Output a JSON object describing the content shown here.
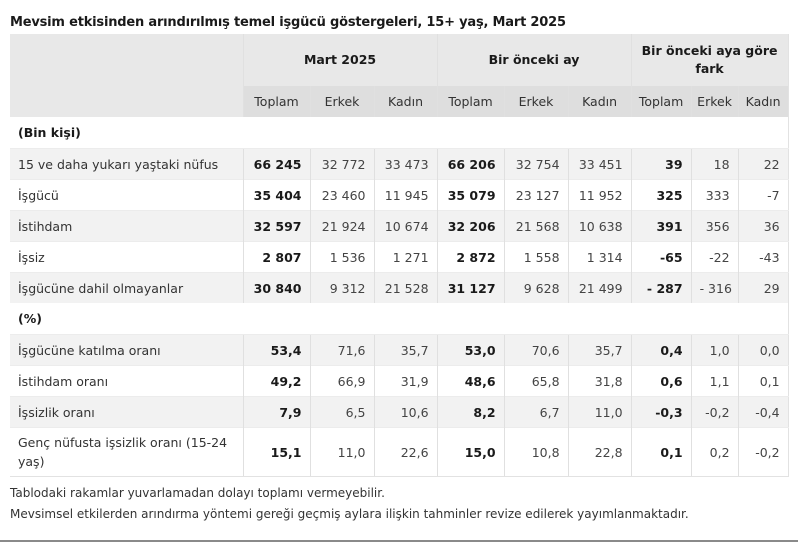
{
  "title": "Mevsim etkisinden arındırılmış temel işgücü göstergeleri, 15+ yaş, Mart 2025",
  "table": {
    "group_headers": [
      "Mart 2025",
      "Bir önceki ay",
      "Bir önceki aya göre fark"
    ],
    "sub_headers": [
      "Toplam",
      "Erkek",
      "Kadın",
      "Toplam",
      "Erkek",
      "Kadın",
      "Toplam",
      "Erkek",
      "Kadın"
    ],
    "sections": [
      {
        "label": "(Bin kişi)",
        "rows": [
          {
            "label": "15 ve daha yukarı yaştaki nüfus",
            "values": [
              "66 245",
              "32 772",
              "33 473",
              "66 206",
              "32 754",
              "33 451",
              "39",
              "18",
              "22"
            ]
          },
          {
            "label": "İşgücü",
            "values": [
              "35 404",
              "23 460",
              "11 945",
              "35 079",
              "23 127",
              "11 952",
              "325",
              "333",
              "-7"
            ]
          },
          {
            "label": "İstihdam",
            "values": [
              "32 597",
              "21 924",
              "10 674",
              "32 206",
              "21 568",
              "10 638",
              "391",
              "356",
              "36"
            ]
          },
          {
            "label": "İşsiz",
            "values": [
              "2 807",
              "1 536",
              "1 271",
              "2 872",
              "1 558",
              "1 314",
              "-65",
              "-22",
              "-43"
            ]
          },
          {
            "label": "İşgücüne dahil olmayanlar",
            "values": [
              "30 840",
              "9 312",
              "21 528",
              "31 127",
              "9 628",
              "21 499",
              "- 287",
              "- 316",
              "29"
            ]
          }
        ]
      },
      {
        "label": "(%)",
        "rows": [
          {
            "label": "İşgücüne katılma oranı",
            "values": [
              "53,4",
              "71,6",
              "35,7",
              "53,0",
              "70,6",
              "35,7",
              "0,4",
              "1,0",
              "0,0"
            ]
          },
          {
            "label": "İstihdam oranı",
            "values": [
              "49,2",
              "66,9",
              "31,9",
              "48,6",
              "65,8",
              "31,8",
              "0,6",
              "1,1",
              "0,1"
            ]
          },
          {
            "label": "İşsizlik oranı",
            "values": [
              "7,9",
              "6,5",
              "10,6",
              "8,2",
              "6,7",
              "11,0",
              "-0,3",
              "-0,2",
              "-0,4"
            ]
          },
          {
            "label": "Genç nüfusta işsizlik oranı (15-24 yaş)",
            "values": [
              "15,1",
              "11,0",
              "22,6",
              "15,0",
              "10,8",
              "22,8",
              "0,1",
              "0,2",
              "-0,2"
            ]
          }
        ]
      }
    ]
  },
  "notes": [
    "Tablodaki rakamlar yuvarlamadan dolayı toplamı vermeyebilir.",
    "Mevsimsel etkilerden arındırma yöntemi gereği geçmiş aylara ilişkin tahminler revize edilerek yayımlanmaktadır."
  ],
  "colors": {
    "header_bg": "#e8e8e8",
    "subheader_bg": "#dedede",
    "stripe_bg": "#f2f2f2",
    "border": "#e0e0e0"
  }
}
